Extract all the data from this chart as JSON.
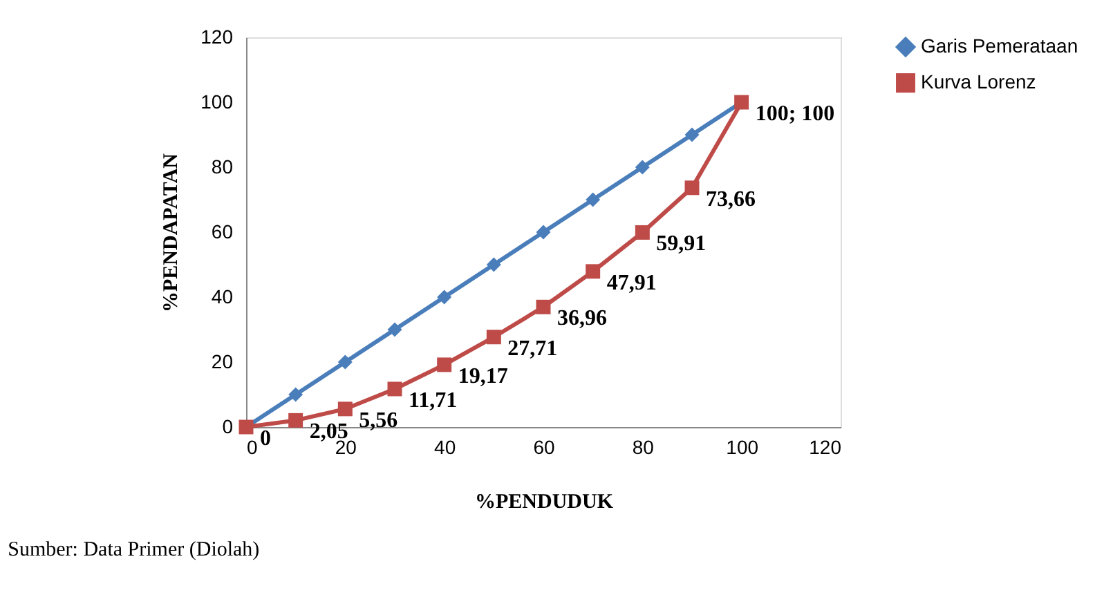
{
  "chart_data": {
    "type": "line",
    "xlabel": "%PENDUDUK",
    "ylabel": "%PENDAPATAN",
    "x": [
      0,
      10,
      20,
      30,
      40,
      50,
      60,
      70,
      80,
      90,
      100
    ],
    "series": [
      {
        "name": "Garis Pemerataan",
        "color": "#4a7ebb",
        "marker": "diamond",
        "values": [
          0,
          10,
          20,
          30,
          40,
          50,
          60,
          70,
          80,
          90,
          100
        ]
      },
      {
        "name": "Kurva Lorenz",
        "color": "#be4b48",
        "marker": "square",
        "values": [
          0,
          2.05,
          5.56,
          11.71,
          19.17,
          27.71,
          36.96,
          47.91,
          59.91,
          73.66,
          100
        ],
        "value_labels": [
          "0",
          "2,05",
          "5,56",
          "11,71",
          "19,17",
          "27,71",
          "36,96",
          "47,91",
          "59,91",
          "73,66",
          "100; 100"
        ]
      }
    ],
    "xlim": [
      0,
      120
    ],
    "xticks": [
      0,
      20,
      40,
      60,
      80,
      100,
      120
    ],
    "ylim": [
      0,
      120
    ],
    "yticks": [
      0,
      20,
      40,
      60,
      80,
      100,
      120
    ],
    "grid": false,
    "legend": "right",
    "line_style": "solid",
    "annotations": [
      "Sumber: Data Primer (Diolah)"
    ]
  }
}
